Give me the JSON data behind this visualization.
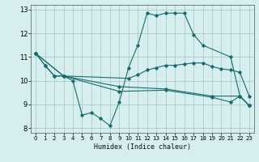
{
  "xlabel": "Humidex (Indice chaleur)",
  "bg_color": "#d6eeee",
  "grid_color": "#a8cccc",
  "line_color": "#1a6b6b",
  "xlim": [
    -0.5,
    23.5
  ],
  "ylim": [
    7.8,
    13.2
  ],
  "yticks": [
    8,
    9,
    10,
    11,
    12,
    13
  ],
  "xticks": [
    0,
    1,
    2,
    3,
    4,
    5,
    6,
    7,
    8,
    9,
    10,
    11,
    12,
    13,
    14,
    15,
    16,
    17,
    18,
    19,
    20,
    21,
    22,
    23
  ],
  "lines": [
    {
      "x": [
        0,
        1,
        2,
        3,
        4,
        5,
        6,
        7,
        8,
        9,
        10,
        11,
        12,
        13,
        14,
        15,
        16,
        17,
        18,
        21,
        22,
        23
      ],
      "y": [
        11.15,
        10.65,
        10.2,
        10.2,
        10.0,
        8.55,
        8.65,
        8.4,
        8.1,
        9.1,
        10.55,
        11.5,
        12.85,
        12.75,
        12.85,
        12.85,
        12.85,
        11.95,
        11.5,
        11.0,
        9.35,
        8.95
      ]
    },
    {
      "x": [
        0,
        1,
        2,
        3,
        10,
        11,
        12,
        13,
        14,
        15,
        16,
        17,
        18,
        19,
        20,
        21,
        22,
        23
      ],
      "y": [
        11.15,
        10.65,
        10.2,
        10.2,
        10.1,
        10.25,
        10.45,
        10.55,
        10.65,
        10.65,
        10.7,
        10.75,
        10.75,
        10.6,
        10.5,
        10.45,
        10.35,
        9.35
      ]
    },
    {
      "x": [
        0,
        3,
        9,
        14,
        19,
        22,
        23
      ],
      "y": [
        11.15,
        10.2,
        9.75,
        9.65,
        9.35,
        9.35,
        8.95
      ]
    },
    {
      "x": [
        0,
        3,
        9,
        14,
        19,
        21,
        22,
        23
      ],
      "y": [
        11.15,
        10.2,
        9.55,
        9.6,
        9.3,
        9.1,
        9.35,
        8.95
      ]
    }
  ]
}
